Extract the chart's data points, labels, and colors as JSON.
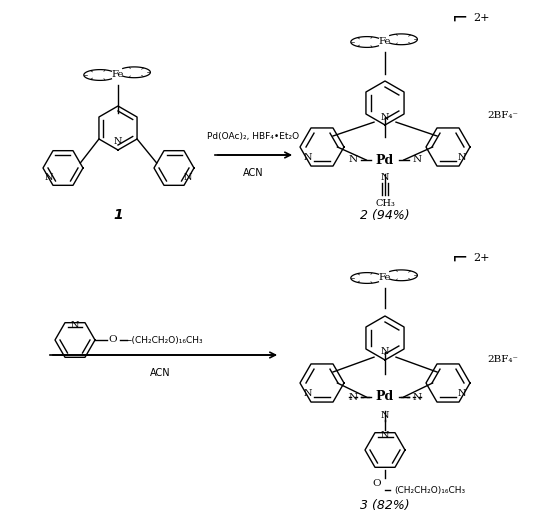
{
  "figsize": [
    5.47,
    5.3
  ],
  "dpi": 100,
  "background_color": "#ffffff",
  "text_color": "#000000",
  "reaction1_reagent1": "Pd(OAc)₂, HBF₄•Et₂O",
  "reaction1_reagent2": "ACN",
  "reaction2_reagent1": "N    O–(CH₂CH₂O)₁₆CH₃",
  "reaction2_reagent1b": "‒‒‒‒‒‒‒‒‒‒‒‒‒‒‒‒‒‒–",
  "reaction2_reagent2": "ACN",
  "label1": "1",
  "label2": "2 (94%)",
  "label3": "3 (82%)",
  "charge": "2+",
  "counterion": "2BF₄⁻"
}
